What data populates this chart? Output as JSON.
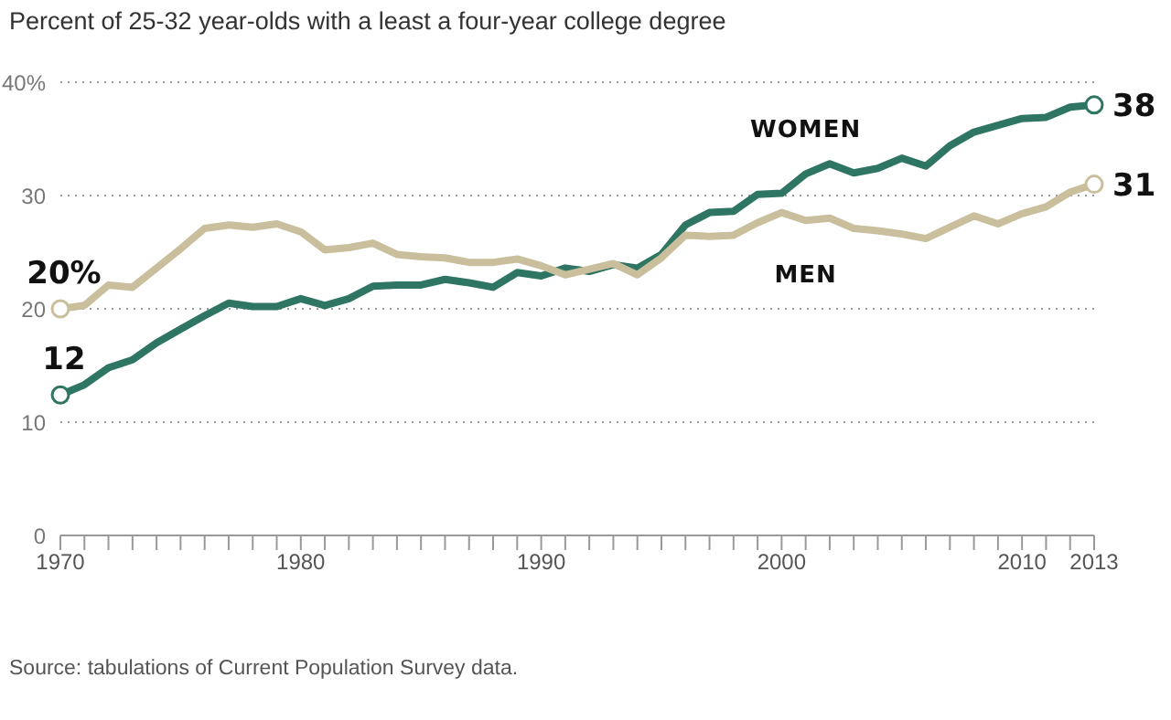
{
  "chart_data": {
    "type": "line",
    "title": "Percent of 25-32 year-olds with a least a four-year college degree",
    "x": [
      1970,
      1971,
      1972,
      1973,
      1974,
      1975,
      1976,
      1977,
      1978,
      1979,
      1980,
      1981,
      1982,
      1983,
      1984,
      1985,
      1986,
      1987,
      1988,
      1989,
      1990,
      1991,
      1992,
      1993,
      1994,
      1995,
      1996,
      1997,
      1998,
      1999,
      2000,
      2001,
      2002,
      2003,
      2004,
      2005,
      2006,
      2007,
      2008,
      2009,
      2010,
      2011,
      2012,
      2013
    ],
    "series": [
      {
        "name": "WOMEN",
        "color": "#2e7563",
        "values": [
          12.4,
          13.3,
          14.8,
          15.5,
          17.0,
          18.2,
          19.4,
          20.5,
          20.2,
          20.2,
          20.9,
          20.3,
          20.9,
          22.0,
          22.1,
          22.1,
          22.6,
          22.3,
          21.9,
          23.2,
          22.9,
          23.6,
          23.3,
          23.9,
          23.6,
          24.8,
          27.4,
          28.5,
          28.6,
          30.1,
          30.2,
          31.9,
          32.8,
          32.0,
          32.4,
          33.3,
          32.6,
          34.4,
          35.6,
          36.2,
          36.8,
          36.9,
          37.8,
          38
        ],
        "value_labels": [
          "12",
          null,
          null,
          null,
          null,
          null,
          null,
          null,
          null,
          null,
          null,
          null,
          null,
          null,
          null,
          null,
          null,
          null,
          null,
          null,
          null,
          null,
          null,
          null,
          null,
          null,
          null,
          null,
          null,
          null,
          null,
          null,
          null,
          null,
          null,
          null,
          null,
          null,
          null,
          null,
          null,
          null,
          null,
          "38"
        ]
      },
      {
        "name": "MEN",
        "color": "#c9bf9c",
        "values": [
          20.0,
          20.3,
          22.1,
          21.9,
          23.6,
          25.3,
          27.1,
          27.4,
          27.2,
          27.5,
          26.8,
          25.2,
          25.4,
          25.8,
          24.8,
          24.6,
          24.5,
          24.1,
          24.1,
          24.4,
          23.8,
          23.0,
          23.5,
          24.0,
          23.0,
          24.5,
          26.5,
          26.4,
          26.5,
          27.6,
          28.5,
          27.8,
          28.0,
          27.1,
          26.9,
          26.6,
          26.2,
          27.2,
          28.2,
          27.5,
          28.4,
          29.0,
          30.3,
          31
        ],
        "value_labels": [
          "20%",
          null,
          null,
          null,
          null,
          null,
          null,
          null,
          null,
          null,
          null,
          null,
          null,
          null,
          null,
          null,
          null,
          null,
          null,
          null,
          null,
          null,
          null,
          null,
          null,
          null,
          null,
          null,
          null,
          null,
          null,
          null,
          null,
          null,
          null,
          null,
          null,
          null,
          null,
          null,
          null,
          null,
          null,
          "31"
        ]
      }
    ],
    "xlim": [
      1970,
      2013
    ],
    "xticks": [
      1970,
      {
        "value": 1971,
        "label": null
      },
      {
        "value": 1972,
        "label": null
      },
      {
        "value": 1973,
        "label": null
      },
      {
        "value": 1974,
        "label": null
      },
      {
        "value": 1975,
        "label": null
      },
      {
        "value": 1976,
        "label": null
      },
      {
        "value": 1977,
        "label": null
      },
      {
        "value": 1978,
        "label": null
      },
      {
        "value": 1979,
        "label": null
      },
      1980,
      {
        "value": 1981,
        "label": null
      },
      {
        "value": 1982,
        "label": null
      },
      {
        "value": 1983,
        "label": null
      },
      {
        "value": 1984,
        "label": null
      },
      {
        "value": 1985,
        "label": null
      },
      {
        "value": 1986,
        "label": null
      },
      {
        "value": 1987,
        "label": null
      },
      {
        "value": 1988,
        "label": null
      },
      {
        "value": 1989,
        "label": null
      },
      1990,
      {
        "value": 1991,
        "label": null
      },
      {
        "value": 1992,
        "label": null
      },
      {
        "value": 1993,
        "label": null
      },
      {
        "value": 1994,
        "label": null
      },
      {
        "value": 1995,
        "label": null
      },
      {
        "value": 1996,
        "label": null
      },
      {
        "value": 1997,
        "label": null
      },
      {
        "value": 1998,
        "label": null
      },
      {
        "value": 1999,
        "label": null
      },
      2000,
      {
        "value": 2001,
        "label": null
      },
      {
        "value": 2002,
        "label": null
      },
      {
        "value": 2003,
        "label": null
      },
      {
        "value": 2004,
        "label": null
      },
      {
        "value": 2005,
        "label": null
      },
      {
        "value": 2006,
        "label": null
      },
      {
        "value": 2007,
        "label": null
      },
      {
        "value": 2008,
        "label": null
      },
      {
        "value": 2009,
        "label": null
      },
      2010,
      {
        "value": 2011,
        "label": null
      },
      {
        "value": 2012,
        "label": null
      },
      2013
    ],
    "ylim": [
      0,
      40
    ],
    "yticks": [
      0,
      10,
      20,
      30,
      {
        "value": 40,
        "label": "40%"
      }
    ],
    "grid": "y",
    "line_style": "solid",
    "annotations": [
      "Source: tabulations of Current Population Survey data."
    ]
  }
}
